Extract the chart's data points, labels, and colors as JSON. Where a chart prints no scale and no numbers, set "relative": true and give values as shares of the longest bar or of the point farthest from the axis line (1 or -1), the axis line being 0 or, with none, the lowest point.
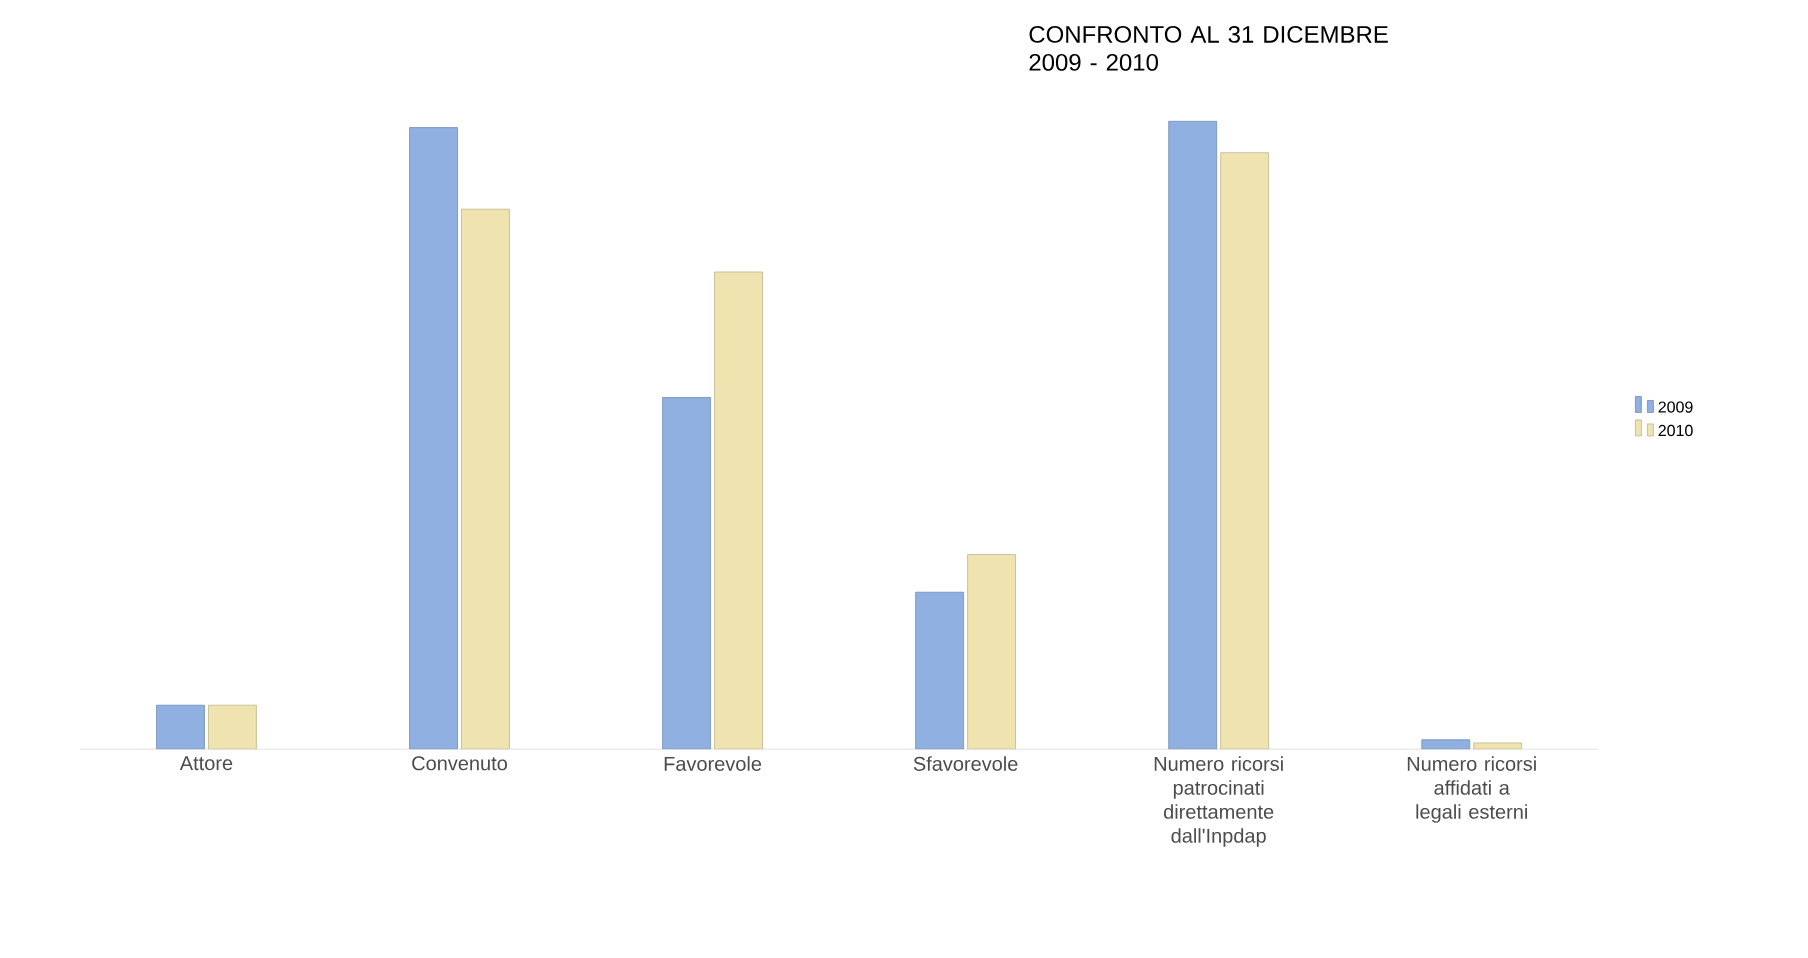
{
  "chart_data": {
    "type": "bar",
    "title": "CONFRONTO AL 31 DICEMBRE 2009 - 2010",
    "relative": true,
    "legend": "right",
    "categories": [
      "Attore",
      "Convenuto",
      "Favorevole",
      "Sfavorevole",
      "Numero ricorsi patrocinati direttamente dall'Inpdap",
      "Numero ricorsi affidati a legali esterni"
    ],
    "series": [
      {
        "name": "2009",
        "color": "#8fb0e0",
        "values": [
          0.07,
          0.99,
          0.56,
          0.25,
          1,
          0.015
        ]
      },
      {
        "name": "2010",
        "color": "#efe3b0",
        "values": [
          0.07,
          0.86,
          0.76,
          0.31,
          0.95,
          0.01
        ]
      }
    ]
  }
}
